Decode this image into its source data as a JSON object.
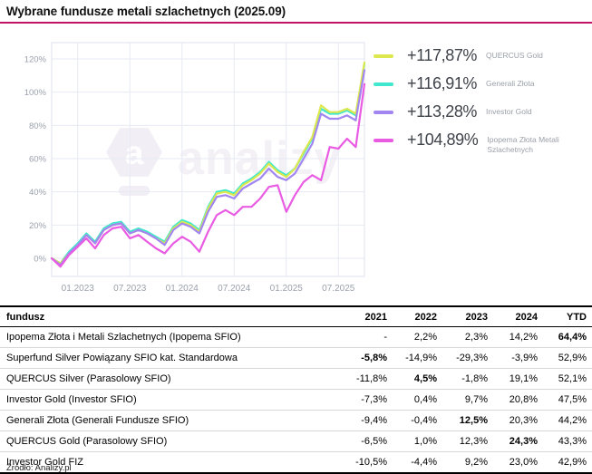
{
  "title": "Wybrane fundusze metali szlachetnych (2025.09)",
  "accent_color": "#c01366",
  "watermark": {
    "letter": "a",
    "text": "analizy"
  },
  "legend": {
    "items": [
      {
        "value": "+117,87%",
        "name": "QUERCUS Gold",
        "color": "#dce84e"
      },
      {
        "value": "+116,91%",
        "name": "Generali Złota",
        "color": "#41e8cd"
      },
      {
        "value": "+113,28%",
        "name": "Investor Gold",
        "color": "#a186f2"
      },
      {
        "value": "+104,89%",
        "name": "Ipopema Złota Metali Szlachetnych",
        "color": "#e95be3"
      }
    ]
  },
  "chart_data": {
    "type": "line",
    "x_unit": "month",
    "x": [
      "09.2022",
      "10.2022",
      "11.2022",
      "12.2022",
      "01.2023",
      "02.2023",
      "03.2023",
      "04.2023",
      "05.2023",
      "06.2023",
      "07.2023",
      "08.2023",
      "09.2023",
      "10.2023",
      "11.2023",
      "12.2023",
      "01.2024",
      "02.2024",
      "03.2024",
      "04.2024",
      "05.2024",
      "06.2024",
      "07.2024",
      "08.2024",
      "09.2024",
      "10.2024",
      "11.2024",
      "12.2024",
      "01.2025",
      "02.2025",
      "03.2025",
      "04.2025",
      "05.2025",
      "06.2025",
      "07.2025",
      "08.2025",
      "09.2025"
    ],
    "x_tick_labels": [
      "01.2023",
      "07.2023",
      "01.2024",
      "07.2024",
      "01.2025",
      "07.2025"
    ],
    "x_tick_indices": [
      3,
      9,
      15,
      21,
      27,
      33
    ],
    "y_ticks": [
      0,
      20,
      40,
      60,
      80,
      100,
      120
    ],
    "y_tick_suffix": "%",
    "ylim": [
      -11,
      131
    ],
    "grid": true,
    "legend_position": "right",
    "series": [
      {
        "name": "Generali Złota",
        "color": "#41e8cd",
        "final_return_pct": 116.91,
        "values": [
          0,
          -3,
          4,
          9,
          15,
          10,
          18,
          21,
          22,
          16,
          18,
          16,
          13,
          10,
          19,
          23,
          21,
          17,
          31,
          40,
          41,
          39,
          45,
          48,
          52,
          58,
          53,
          50,
          54,
          63,
          72,
          90,
          87,
          87,
          89,
          86,
          116.91
        ]
      },
      {
        "name": "QUERCUS Gold",
        "color": "#dce84e",
        "final_return_pct": 117.87,
        "values": [
          0,
          -3,
          3,
          8,
          14,
          9,
          17,
          20,
          21,
          15,
          17,
          15,
          12,
          9,
          18,
          22,
          20,
          16,
          30,
          39,
          40,
          38,
          44,
          47,
          51,
          57,
          52,
          49,
          54,
          64,
          73,
          92,
          88,
          88,
          90,
          87,
          117.87
        ]
      },
      {
        "name": "Investor Gold",
        "color": "#a186f2",
        "final_return_pct": 113.28,
        "values": [
          0,
          -4,
          3,
          8,
          14,
          9,
          17,
          20,
          21,
          15,
          17,
          15,
          12,
          8,
          17,
          21,
          19,
          15,
          28,
          37,
          38,
          36,
          42,
          45,
          48,
          54,
          49,
          47,
          51,
          60,
          69,
          87,
          84,
          84,
          86,
          83,
          113.28
        ]
      },
      {
        "name": "Ipopema Złota Metali Szlachetnych",
        "color": "#e95be3",
        "final_return_pct": 104.89,
        "values": [
          0,
          -5,
          2,
          7,
          12,
          6,
          14,
          18,
          19,
          12,
          14,
          10,
          6,
          3,
          9,
          13,
          10,
          4,
          16,
          26,
          29,
          26,
          31,
          31,
          36,
          43,
          44,
          28,
          38,
          46,
          50,
          47,
          67,
          66,
          72,
          67,
          104.89
        ]
      }
    ]
  },
  "table": {
    "header": {
      "fund": "fundusz",
      "cols": [
        "2021",
        "2022",
        "2023",
        "2024",
        "YTD"
      ]
    },
    "rows": [
      {
        "name": "Ipopema Złota i Metali Szlachetnych (Ipopema SFIO)",
        "values": [
          "-",
          "2,2%",
          "2,3%",
          "14,2%",
          "64,4%"
        ],
        "bold_col": 4
      },
      {
        "name": "Superfund Silver Powiązany SFIO kat. Standardowa",
        "values": [
          "-5,8%",
          "-14,9%",
          "-29,3%",
          "-3,9%",
          "52,9%"
        ],
        "bold_col": 0
      },
      {
        "name": "QUERCUS Silver (Parasolowy SFIO)",
        "values": [
          "-11,8%",
          "4,5%",
          "-1,8%",
          "19,1%",
          "52,1%"
        ],
        "bold_col": 1
      },
      {
        "name": "Investor Gold (Investor SFIO)",
        "values": [
          "-7,3%",
          "0,4%",
          "9,7%",
          "20,8%",
          "47,5%"
        ],
        "bold_col": null
      },
      {
        "name": "Generali Złota (Generali Fundusze SFIO)",
        "values": [
          "-9,4%",
          "-0,4%",
          "12,5%",
          "20,3%",
          "44,2%"
        ],
        "bold_col": 2
      },
      {
        "name": "QUERCUS Gold (Parasolowy SFIO)",
        "values": [
          "-6,5%",
          "1,0%",
          "12,3%",
          "24,3%",
          "43,3%"
        ],
        "bold_col": 3
      },
      {
        "name": "Investor Gold FIZ",
        "values": [
          "-10,5%",
          "-4,4%",
          "9,2%",
          "23,0%",
          "42,9%"
        ],
        "bold_col": null
      }
    ]
  },
  "footer": {
    "source": "Źródło: Analizy.pl"
  }
}
